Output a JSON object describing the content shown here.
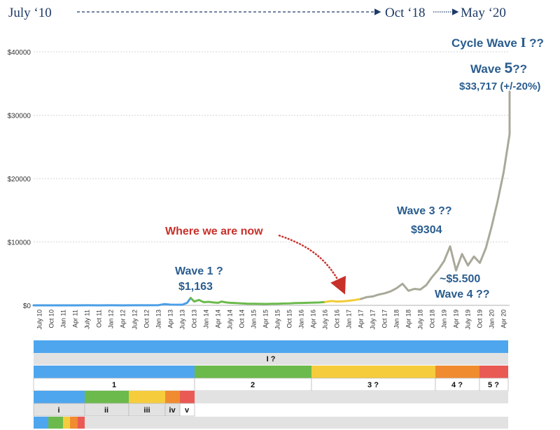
{
  "timeline": {
    "start": "July ‘10",
    "mid": "Oct ‘18",
    "end": "May ‘20"
  },
  "chart_data": {
    "type": "line",
    "x": [
      "July 10",
      "Oct 10",
      "Jan 11",
      "Apr 11",
      "July 11",
      "Oct 11",
      "Jan 12",
      "Apr 12",
      "July 12",
      "Oct 12",
      "Jan 13",
      "Apr 13",
      "July 13",
      "Oct 13",
      "Jan 14",
      "Apr 14",
      "July 14",
      "Oct 14",
      "Jan 15",
      "Apr 15",
      "July 15",
      "Oct 15",
      "Jan 16",
      "Apr 16",
      "July 16",
      "Oct 16",
      "Jan 17",
      "Apr 17",
      "July 17",
      "Oct 17",
      "Jan 18",
      "Apr 18",
      "July 18",
      "Oct 18",
      "Jan 19",
      "Apr 19",
      "July 19",
      "Oct 19",
      "Jan 20",
      "Apr 20"
    ],
    "y_ticks": [
      "$0",
      "$10000",
      "$20000",
      "$30000",
      "$40000"
    ],
    "ylim": [
      0,
      40000
    ],
    "grid": true,
    "series": [
      {
        "color": "#4a9ee6",
        "points": [
          [
            0,
            0
          ],
          [
            1,
            0
          ],
          [
            2,
            1
          ],
          [
            3,
            1
          ],
          [
            4,
            14
          ],
          [
            5,
            3
          ],
          [
            6,
            6
          ],
          [
            7,
            5
          ],
          [
            8,
            8
          ],
          [
            9,
            12
          ],
          [
            10,
            30
          ],
          [
            10.5,
            200
          ],
          [
            11,
            110
          ],
          [
            11.5,
            100
          ],
          [
            12,
            95
          ],
          [
            12.4,
            400
          ],
          [
            12.7,
            1163
          ]
        ]
      },
      {
        "color": "#6cba4c",
        "points": [
          [
            12.7,
            1163
          ],
          [
            13,
            600
          ],
          [
            13.4,
            850
          ],
          [
            13.8,
            500
          ],
          [
            14.2,
            550
          ],
          [
            14.6,
            450
          ],
          [
            15,
            400
          ],
          [
            15.3,
            600
          ],
          [
            15.7,
            450
          ],
          [
            16,
            400
          ],
          [
            16.5,
            350
          ],
          [
            17,
            300
          ],
          [
            17.5,
            250
          ],
          [
            18,
            240
          ],
          [
            18.5,
            230
          ],
          [
            19,
            220
          ],
          [
            19.5,
            240
          ],
          [
            20,
            250
          ],
          [
            20.5,
            290
          ],
          [
            21,
            310
          ],
          [
            21.5,
            360
          ],
          [
            22,
            380
          ],
          [
            22.5,
            400
          ],
          [
            23,
            430
          ],
          [
            23.5,
            450
          ],
          [
            24,
            520
          ]
        ]
      },
      {
        "color": "#f2cd36",
        "points": [
          [
            24,
            520
          ],
          [
            24.5,
            680
          ],
          [
            25,
            600
          ],
          [
            25.5,
            640
          ],
          [
            26,
            720
          ],
          [
            26.5,
            850
          ],
          [
            27,
            1000
          ]
        ]
      },
      {
        "color": "#a9a99a",
        "points": [
          [
            27,
            1000
          ],
          [
            27.5,
            1300
          ],
          [
            28,
            1400
          ],
          [
            28.5,
            1700
          ],
          [
            29,
            1900
          ],
          [
            29.5,
            2200
          ],
          [
            30,
            2700
          ],
          [
            30.5,
            3400
          ],
          [
            31,
            2300
          ],
          [
            31.5,
            2600
          ],
          [
            32,
            2500
          ],
          [
            32.5,
            3200
          ],
          [
            33,
            4500
          ],
          [
            33.5,
            5600
          ],
          [
            34,
            7000
          ],
          [
            34.5,
            9304
          ],
          [
            35,
            5500
          ],
          [
            35.5,
            8100
          ],
          [
            36,
            6300
          ],
          [
            36.5,
            7700
          ],
          [
            37,
            6700
          ],
          [
            37.5,
            9000
          ],
          [
            38,
            12500
          ],
          [
            38.5,
            16500
          ],
          [
            39,
            21000
          ],
          [
            39.5,
            27000
          ],
          [
            40,
            33717
          ]
        ]
      }
    ],
    "annotations": {
      "now": "Where we are now",
      "w1_title": "Wave 1 ?",
      "w1_value": "$1,163",
      "w3_title": "Wave 3 ??",
      "w3_value": "$9304",
      "w4_value": "~$5.500",
      "w4_title": "Wave 4 ??",
      "cycle_prefix": "Cycle Wave ",
      "cycle_numeral": "I",
      "cycle_suffix": " ??",
      "w5_prefix": "Wave ",
      "w5_number": "5",
      "w5_suffix": "??",
      "w5_value": "$33,717 (+/-20%)"
    }
  },
  "wave_rows": {
    "cycle_label": "I ?",
    "primary": [
      {
        "label": "1",
        "color": "#4ea6ee"
      },
      {
        "label": "2",
        "color": "#6cba4c"
      },
      {
        "label": "3 ?",
        "color": "#f5cd3c"
      },
      {
        "label": "4 ?",
        "color": "#f08b30"
      },
      {
        "label": "5 ?",
        "color": "#ea5a55"
      }
    ],
    "intermediate": [
      {
        "label": "i",
        "color": "#4ea6ee"
      },
      {
        "label": "ii",
        "color": "#6cba4c"
      },
      {
        "label": "iii",
        "color": "#f5cd3c"
      },
      {
        "label": "iv",
        "color": "#f08b30"
      },
      {
        "label": "v",
        "color": "#ea5a55"
      }
    ],
    "minor_colors": [
      "#4ea6ee",
      "#6cba4c",
      "#f5cd3c",
      "#f08b30",
      "#ea5a55"
    ]
  }
}
